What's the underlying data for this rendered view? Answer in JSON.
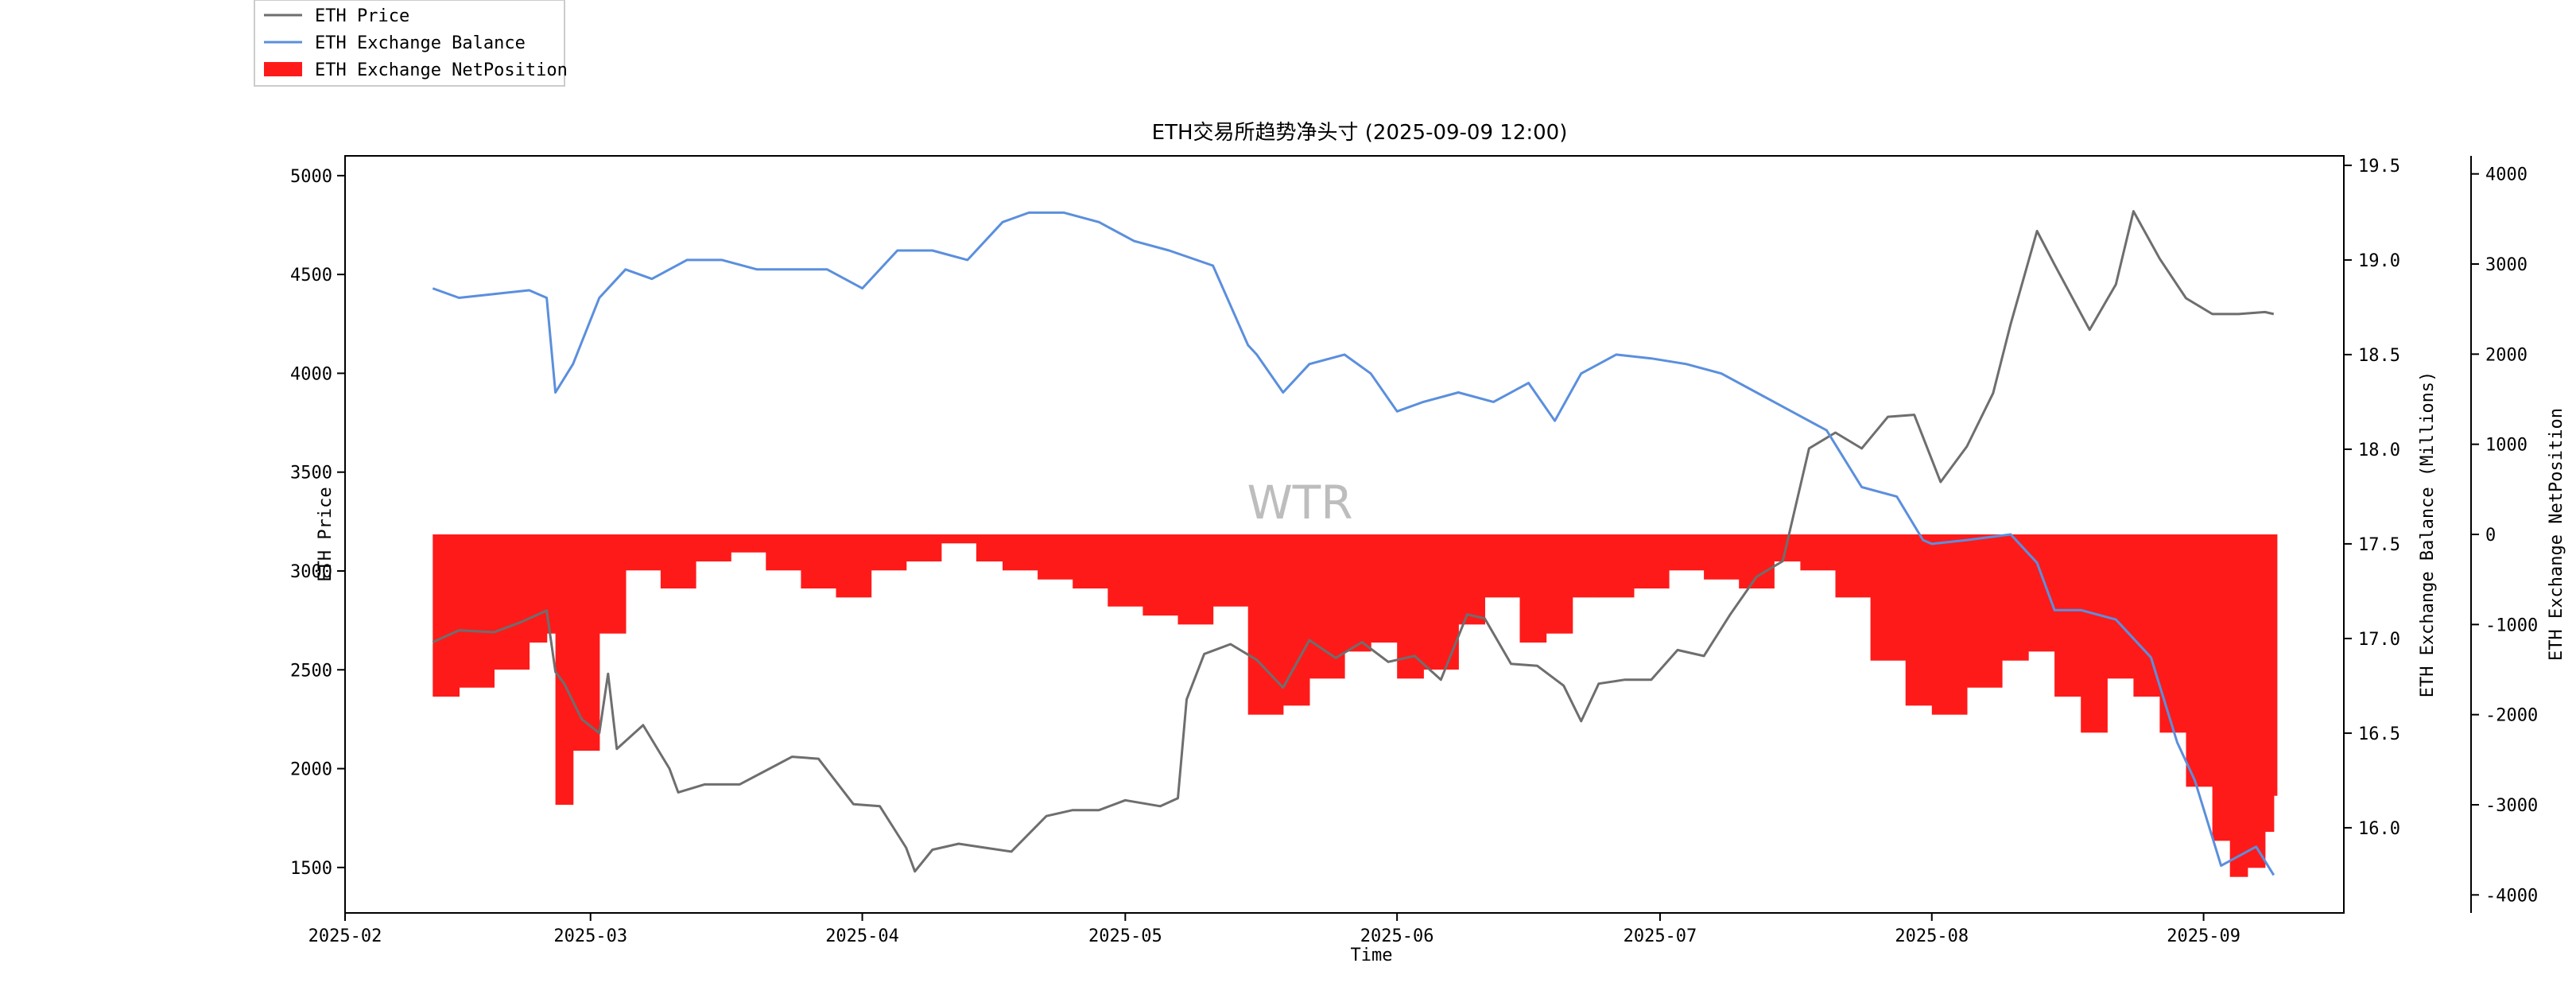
{
  "chart_data": {
    "type": "line",
    "title": "ETH交易所趋势净头寸 (2025-09-09 12:00)",
    "watermark": "WTR",
    "xlabel": "Time",
    "x_ticks": [
      "2025-02",
      "2025-03",
      "2025-04",
      "2025-05",
      "2025-06",
      "2025-07",
      "2025-08",
      "2025-09"
    ],
    "x_range": [
      "2025-02-01",
      "2025-09-17"
    ],
    "axes": {
      "price": {
        "label": "ETH Price",
        "ylim": [
          1270,
          5100
        ],
        "ticks": [
          1500,
          2000,
          2500,
          3000,
          3500,
          4000,
          4500,
          5000
        ]
      },
      "balance": {
        "label": "ETH Exchange Balance (Millions)",
        "ylim": [
          15.55,
          19.55
        ],
        "ticks": [
          "15.5",
          "16.0",
          "16.5",
          "17.0",
          "17.5",
          "18.0",
          "18.5",
          "19.0",
          "19.5"
        ]
      },
      "netposition": {
        "label": "ETH Exchange NetPosition",
        "ylim": [
          -4200,
          4200
        ],
        "ticks": [
          -4000,
          -3000,
          -2000,
          -1000,
          0,
          1000,
          2000,
          3000,
          4000
        ]
      }
    },
    "legend": {
      "placement": "top-left",
      "entries": [
        "ETH Price",
        "ETH Exchange Balance",
        "ETH Exchange NetPosition"
      ]
    },
    "colors": {
      "price": "#6e6e6e",
      "balance": "#5b8fdd",
      "netposition": "#ff1a1a"
    },
    "grid": false,
    "series": [
      {
        "name": "ETH Price",
        "axis": "price",
        "x": [
          "2025-02-11",
          "2025-02-14",
          "2025-02-18",
          "2025-02-21",
          "2025-02-24",
          "2025-02-25",
          "2025-02-26",
          "2025-02-28",
          "2025-03-02",
          "2025-03-03",
          "2025-03-04",
          "2025-03-07",
          "2025-03-10",
          "2025-03-11",
          "2025-03-14",
          "2025-03-18",
          "2025-03-21",
          "2025-03-24",
          "2025-03-27",
          "2025-03-31",
          "2025-04-03",
          "2025-04-06",
          "2025-04-07",
          "2025-04-09",
          "2025-04-12",
          "2025-04-15",
          "2025-04-18",
          "2025-04-22",
          "2025-04-25",
          "2025-04-28",
          "2025-05-01",
          "2025-05-05",
          "2025-05-07",
          "2025-05-08",
          "2025-05-10",
          "2025-05-13",
          "2025-05-16",
          "2025-05-19",
          "2025-05-22",
          "2025-05-25",
          "2025-05-28",
          "2025-05-31",
          "2025-06-03",
          "2025-06-06",
          "2025-06-09",
          "2025-06-11",
          "2025-06-14",
          "2025-06-17",
          "2025-06-20",
          "2025-06-22",
          "2025-06-24",
          "2025-06-27",
          "2025-06-30",
          "2025-07-03",
          "2025-07-06",
          "2025-07-09",
          "2025-07-12",
          "2025-07-15",
          "2025-07-18",
          "2025-07-21",
          "2025-07-24",
          "2025-07-27",
          "2025-07-30",
          "2025-08-02",
          "2025-08-05",
          "2025-08-08",
          "2025-08-10",
          "2025-08-13",
          "2025-08-15",
          "2025-08-19",
          "2025-08-22",
          "2025-08-24",
          "2025-08-27",
          "2025-08-30",
          "2025-09-02",
          "2025-09-05",
          "2025-09-08",
          "2025-09-09"
        ],
        "y": [
          2640,
          2700,
          2690,
          2740,
          2800,
          2490,
          2430,
          2250,
          2180,
          2480,
          2100,
          2220,
          2000,
          1880,
          1920,
          1920,
          1990,
          2060,
          2050,
          1820,
          1810,
          1600,
          1480,
          1590,
          1620,
          1600,
          1580,
          1760,
          1790,
          1790,
          1840,
          1810,
          1850,
          2350,
          2580,
          2630,
          2550,
          2410,
          2650,
          2560,
          2640,
          2540,
          2570,
          2450,
          2780,
          2760,
          2530,
          2520,
          2420,
          2240,
          2430,
          2450,
          2450,
          2600,
          2570,
          2780,
          2970,
          3050,
          3620,
          3700,
          3620,
          3780,
          3790,
          3450,
          3630,
          3900,
          4250,
          4720,
          4550,
          4220,
          4450,
          4820,
          4580,
          4380,
          4300,
          4300,
          4310,
          4300
        ]
      },
      {
        "name": "ETH Exchange Balance",
        "axis": "balance",
        "x": [
          "2025-02-11",
          "2025-02-14",
          "2025-02-18",
          "2025-02-22",
          "2025-02-24",
          "2025-02-25",
          "2025-02-27",
          "2025-03-02",
          "2025-03-05",
          "2025-03-08",
          "2025-03-12",
          "2025-03-16",
          "2025-03-20",
          "2025-03-24",
          "2025-03-28",
          "2025-04-01",
          "2025-04-05",
          "2025-04-09",
          "2025-04-13",
          "2025-04-17",
          "2025-04-20",
          "2025-04-24",
          "2025-04-28",
          "2025-05-02",
          "2025-05-06",
          "2025-05-11",
          "2025-05-15",
          "2025-05-16",
          "2025-05-19",
          "2025-05-22",
          "2025-05-26",
          "2025-05-29",
          "2025-06-01",
          "2025-06-04",
          "2025-06-08",
          "2025-06-12",
          "2025-06-16",
          "2025-06-19",
          "2025-06-22",
          "2025-06-26",
          "2025-06-30",
          "2025-07-04",
          "2025-07-08",
          "2025-07-12",
          "2025-07-16",
          "2025-07-20",
          "2025-07-24",
          "2025-07-28",
          "2025-07-31",
          "2025-08-01",
          "2025-08-05",
          "2025-08-10",
          "2025-08-13",
          "2025-08-15",
          "2025-08-18",
          "2025-08-22",
          "2025-08-26",
          "2025-08-29",
          "2025-08-31",
          "2025-09-03",
          "2025-09-05",
          "2025-09-07",
          "2025-09-09"
        ],
        "y": [
          18.85,
          18.8,
          18.82,
          18.84,
          18.8,
          18.3,
          18.45,
          18.8,
          18.95,
          18.9,
          19.0,
          19.0,
          18.95,
          18.95,
          18.95,
          18.85,
          19.05,
          19.05,
          19.0,
          19.2,
          19.25,
          19.25,
          19.2,
          19.1,
          19.05,
          18.97,
          18.55,
          18.5,
          18.3,
          18.45,
          18.5,
          18.4,
          18.2,
          18.25,
          18.3,
          18.25,
          18.35,
          18.15,
          18.4,
          18.5,
          18.48,
          18.45,
          18.4,
          18.3,
          18.2,
          18.1,
          17.8,
          17.75,
          17.52,
          17.5,
          17.52,
          17.55,
          17.4,
          17.15,
          17.15,
          17.1,
          16.9,
          16.45,
          16.25,
          15.8,
          15.85,
          15.9,
          15.75
        ]
      },
      {
        "name": "ETH Exchange NetPosition",
        "axis": "netposition",
        "type": "bar",
        "x": [
          "2025-02-11",
          "2025-02-14",
          "2025-02-18",
          "2025-02-22",
          "2025-02-24",
          "2025-02-25",
          "2025-02-27",
          "2025-03-02",
          "2025-03-05",
          "2025-03-09",
          "2025-03-13",
          "2025-03-17",
          "2025-03-21",
          "2025-03-25",
          "2025-03-29",
          "2025-04-02",
          "2025-04-06",
          "2025-04-10",
          "2025-04-14",
          "2025-04-17",
          "2025-04-21",
          "2025-04-25",
          "2025-04-29",
          "2025-05-03",
          "2025-05-07",
          "2025-05-11",
          "2025-05-15",
          "2025-05-19",
          "2025-05-22",
          "2025-05-26",
          "2025-05-29",
          "2025-06-01",
          "2025-06-04",
          "2025-06-08",
          "2025-06-11",
          "2025-06-15",
          "2025-06-18",
          "2025-06-21",
          "2025-06-24",
          "2025-06-28",
          "2025-07-02",
          "2025-07-06",
          "2025-07-10",
          "2025-07-14",
          "2025-07-17",
          "2025-07-21",
          "2025-07-25",
          "2025-07-29",
          "2025-08-01",
          "2025-08-05",
          "2025-08-09",
          "2025-08-12",
          "2025-08-15",
          "2025-08-18",
          "2025-08-21",
          "2025-08-24",
          "2025-08-27",
          "2025-08-30",
          "2025-09-02",
          "2025-09-04",
          "2025-09-06",
          "2025-09-08",
          "2025-09-09"
        ],
        "y": [
          -1800,
          -1700,
          -1500,
          -1200,
          -1100,
          -3000,
          -2400,
          -1100,
          -400,
          -600,
          -300,
          -200,
          -400,
          -600,
          -700,
          -400,
          -300,
          -100,
          -300,
          -400,
          -500,
          -600,
          -800,
          -900,
          -1000,
          -800,
          -2000,
          -1900,
          -1600,
          -1300,
          -1200,
          -1600,
          -1500,
          -1000,
          -700,
          -1200,
          -1100,
          -700,
          -700,
          -600,
          -400,
          -500,
          -600,
          -300,
          -400,
          -700,
          -1400,
          -1900,
          -2000,
          -1700,
          -1400,
          -1300,
          -1800,
          -2200,
          -1600,
          -1800,
          -2200,
          -2800,
          -3400,
          -3800,
          -3700,
          -3300,
          -2900
        ]
      }
    ]
  }
}
